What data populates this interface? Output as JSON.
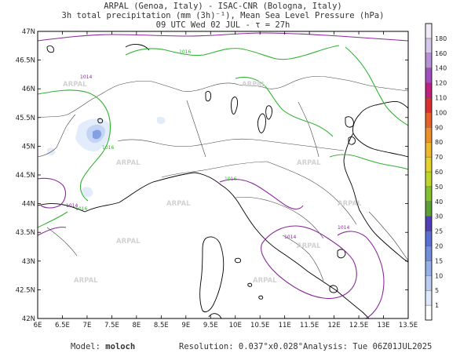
{
  "header": {
    "line1": "ARPAL (Genoa, Italy)  -  ISAC-CNR (Bologna, Italy)",
    "line2": "3h total precipitation (mm (3h)⁻¹), Mean Sea Level Pressure (hPa)",
    "line3": "09 UTC Wed 02 JUL  -  τ = 27h"
  },
  "map": {
    "lon_ticks": [
      "6E",
      "6.5E",
      "7E",
      "7.5E",
      "8E",
      "8.5E",
      "9E",
      "9.5E",
      "10E",
      "10.5E",
      "11E",
      "11.5E",
      "12E",
      "12.5E",
      "13E",
      "13.5E"
    ],
    "lat_ticks": [
      "42N",
      "42.5N",
      "43N",
      "43.5N",
      "44N",
      "44.5N",
      "45N",
      "45.5N",
      "46N",
      "46.5N",
      "47N"
    ],
    "isobar_labels": [
      "1016",
      "1016",
      "1014",
      "1016",
      "1016",
      "1014",
      "1014",
      "1014"
    ],
    "watermark": "ARPAL",
    "colors": {
      "isobar_high": "#33b233",
      "isobar_low": "#8a2a9a",
      "coast": "#000000",
      "border": "#444444"
    }
  },
  "colorbar": {
    "levels": [
      "1",
      "5",
      "10",
      "15",
      "20",
      "25",
      "30",
      "40",
      "50",
      "60",
      "70",
      "80",
      "90",
      "100",
      "110",
      "120",
      "140",
      "160",
      "180"
    ],
    "colors": [
      "#ffffff",
      "#dfe9fb",
      "#b9cdf3",
      "#94b1ea",
      "#7090dd",
      "#5a6fd4",
      "#4f3fb8",
      "#5aa032",
      "#82c22e",
      "#bcd62c",
      "#e5d22a",
      "#eeb82a",
      "#ee8f2a",
      "#e8602a",
      "#dc3030",
      "#c02080",
      "#a050c0",
      "#b891d6",
      "#d6c8ea",
      "#efeaf6"
    ]
  },
  "footer": {
    "model_label": "Model:",
    "model_name": "moloch",
    "resolution_label": "Resolution:",
    "resolution_value": "0.037°x0.028°",
    "analysis_label": "Analysis:",
    "analysis_value": "Tue 06Z01JUL2025"
  }
}
